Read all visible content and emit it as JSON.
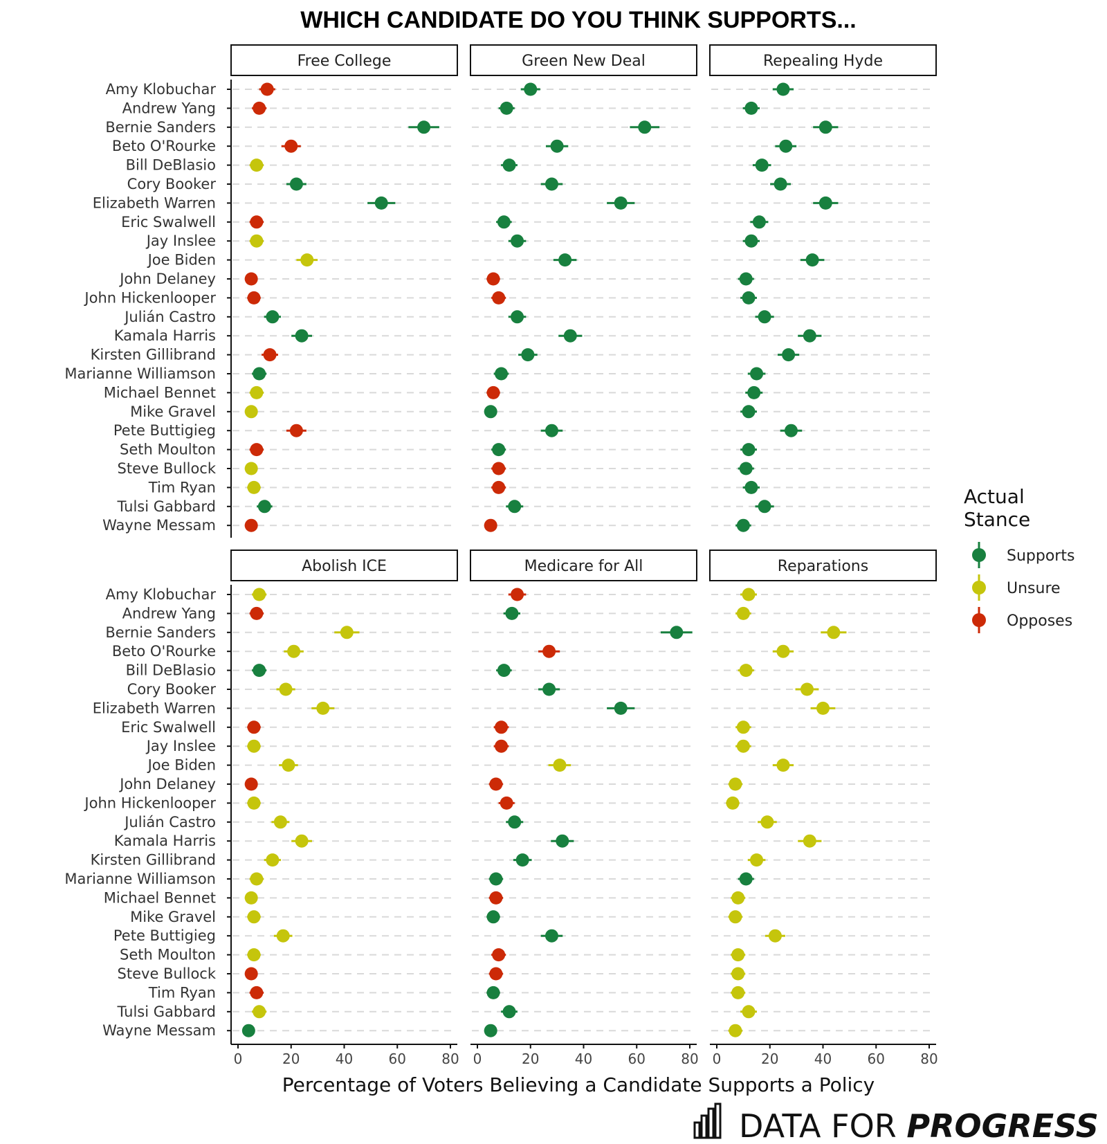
{
  "chart_data": {
    "type": "scatter",
    "title": "WHICH CANDIDATE DO YOU THINK SUPPORTS...",
    "xlabel": "Percentage of Voters Believing a Candidate Supports a Policy",
    "xlim": [
      0,
      80
    ],
    "xticks": [
      0,
      20,
      40,
      60,
      80
    ],
    "candidates": [
      "Amy Klobuchar",
      "Andrew Yang",
      "Bernie Sanders",
      "Beto O'Rourke",
      "Bill DeBlasio",
      "Cory Booker",
      "Elizabeth Warren",
      "Eric Swalwell",
      "Jay Inslee",
      "Joe Biden",
      "John Delaney",
      "John Hickenlooper",
      "Julián Castro",
      "Kamala Harris",
      "Kirsten Gillibrand",
      "Marianne Williamson",
      "Michael Bennet",
      "Mike Gravel",
      "Pete Buttigieg",
      "Seth Moulton",
      "Steve Bullock",
      "Tim Ryan",
      "Tulsi Gabbard",
      "Wayne Messam"
    ],
    "legend": {
      "title_line1": "Actual",
      "title_line2": "Stance",
      "entries": [
        {
          "key": "S",
          "label": "Supports",
          "color": "#18803f"
        },
        {
          "key": "U",
          "label": "Unsure",
          "color": "#c5c50c"
        },
        {
          "key": "O",
          "label": "Opposes",
          "color": "#cc2a07"
        }
      ]
    },
    "panels": [
      {
        "name": "Free College",
        "values": [
          11,
          8,
          70,
          20,
          7,
          22,
          54,
          7,
          7,
          26,
          5,
          6,
          13,
          24,
          12,
          8,
          7,
          5,
          22,
          7,
          5,
          6,
          10,
          5
        ],
        "stance": [
          "O",
          "O",
          "S",
          "O",
          "U",
          "S",
          "S",
          "O",
          "U",
          "U",
          "O",
          "O",
          "S",
          "S",
          "O",
          "S",
          "U",
          "U",
          "O",
          "O",
          "U",
          "U",
          "S",
          "O"
        ]
      },
      {
        "name": "Green New Deal",
        "values": [
          20,
          11,
          63,
          30,
          12,
          28,
          54,
          10,
          15,
          33,
          6,
          8,
          15,
          35,
          19,
          9,
          6,
          5,
          28,
          8,
          8,
          8,
          14,
          5
        ],
        "stance": [
          "S",
          "S",
          "S",
          "S",
          "S",
          "S",
          "S",
          "S",
          "S",
          "S",
          "O",
          "O",
          "S",
          "S",
          "S",
          "S",
          "O",
          "S",
          "S",
          "S",
          "O",
          "O",
          "S",
          "O"
        ]
      },
      {
        "name": "Repealing Hyde",
        "values": [
          25,
          13,
          41,
          26,
          17,
          24,
          41,
          16,
          13,
          36,
          11,
          12,
          18,
          35,
          27,
          15,
          14,
          12,
          28,
          12,
          11,
          13,
          18,
          10
        ],
        "stance": [
          "S",
          "S",
          "S",
          "S",
          "S",
          "S",
          "S",
          "S",
          "S",
          "S",
          "S",
          "S",
          "S",
          "S",
          "S",
          "S",
          "S",
          "S",
          "S",
          "S",
          "S",
          "S",
          "S",
          "S"
        ]
      },
      {
        "name": "Abolish ICE",
        "values": [
          8,
          7,
          41,
          21,
          8,
          18,
          32,
          6,
          6,
          19,
          5,
          6,
          16,
          24,
          13,
          7,
          5,
          6,
          17,
          6,
          5,
          7,
          8,
          4
        ],
        "stance": [
          "U",
          "O",
          "U",
          "U",
          "S",
          "U",
          "U",
          "O",
          "U",
          "U",
          "O",
          "U",
          "U",
          "U",
          "U",
          "U",
          "U",
          "U",
          "U",
          "U",
          "O",
          "O",
          "U",
          "S"
        ]
      },
      {
        "name": "Medicare for All",
        "values": [
          15,
          13,
          75,
          27,
          10,
          27,
          54,
          9,
          9,
          31,
          7,
          11,
          14,
          32,
          17,
          7,
          7,
          6,
          28,
          8,
          7,
          6,
          12,
          5
        ],
        "stance": [
          "O",
          "S",
          "S",
          "O",
          "S",
          "S",
          "S",
          "O",
          "O",
          "U",
          "O",
          "O",
          "S",
          "S",
          "S",
          "S",
          "O",
          "S",
          "S",
          "O",
          "O",
          "S",
          "S",
          "S"
        ]
      },
      {
        "name": "Reparations",
        "values": [
          12,
          10,
          44,
          25,
          11,
          34,
          40,
          10,
          10,
          25,
          7,
          6,
          19,
          35,
          15,
          11,
          8,
          7,
          22,
          8,
          8,
          8,
          12,
          7
        ],
        "stance": [
          "U",
          "U",
          "U",
          "U",
          "U",
          "U",
          "U",
          "U",
          "U",
          "U",
          "U",
          "U",
          "U",
          "U",
          "U",
          "S",
          "U",
          "U",
          "U",
          "U",
          "U",
          "U",
          "U",
          "U"
        ]
      }
    ]
  },
  "branding": {
    "text_regular": "DATA FOR ",
    "text_bold": "PROGRESS"
  }
}
